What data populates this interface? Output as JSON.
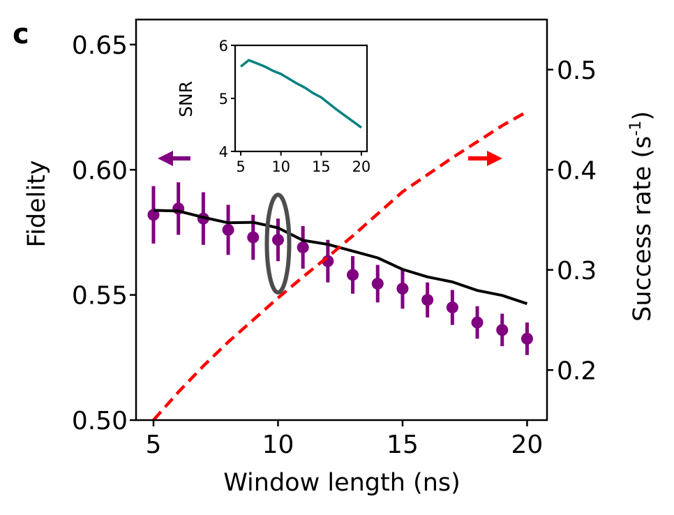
{
  "panel_label": "c",
  "chart_data": [
    {
      "type": "line",
      "xlabel": "Window length (ns)",
      "ylabel_left": "Fidelity",
      "ylabel_right_main": "Success rate (s",
      "ylabel_right_sup": "-1",
      "ylabel_right_close": ")",
      "xlim": [
        4.3,
        20.8
      ],
      "ylim_left": [
        0.5,
        0.66
      ],
      "ylim_right": [
        0.15,
        0.55
      ],
      "xticks": [
        5,
        10,
        15,
        20
      ],
      "xtick_labels": [
        "5",
        "10",
        "15",
        "20"
      ],
      "yticks_left": [
        0.5,
        0.55,
        0.6,
        0.65
      ],
      "ytick_labels_left": [
        "0.50",
        "0.55",
        "0.60",
        "0.65"
      ],
      "yticks_right": [
        0.2,
        0.3,
        0.4,
        0.5
      ],
      "ytick_labels_right": [
        "0.2",
        "0.3",
        "0.4",
        "0.5"
      ],
      "series": [
        {
          "kind": "errorbar",
          "axis": "left",
          "color": "#800080",
          "x": [
            5,
            6,
            7,
            8,
            9,
            10,
            11,
            12,
            13,
            14,
            15,
            16,
            17,
            18,
            19,
            20
          ],
          "y": [
            0.582,
            0.5845,
            0.5805,
            0.576,
            0.573,
            0.572,
            0.569,
            0.5635,
            0.558,
            0.5545,
            0.5525,
            0.548,
            0.545,
            0.539,
            0.536,
            0.5325
          ],
          "err": [
            0.0115,
            0.0105,
            0.0105,
            0.01,
            0.009,
            0.0085,
            0.0085,
            0.0085,
            0.0075,
            0.0075,
            0.008,
            0.007,
            0.007,
            0.0065,
            0.0065,
            0.0065
          ]
        },
        {
          "kind": "line",
          "axis": "left",
          "color": "#000000",
          "x": [
            5,
            6,
            7,
            8,
            9,
            10,
            11,
            12,
            13,
            14,
            15,
            16,
            17,
            18,
            19,
            20
          ],
          "y": [
            0.5838,
            0.5835,
            0.581,
            0.5788,
            0.579,
            0.5768,
            0.5718,
            0.5702,
            0.5675,
            0.5648,
            0.5602,
            0.5572,
            0.5552,
            0.5518,
            0.5498,
            0.5465
          ]
        },
        {
          "kind": "dashed-line",
          "axis": "right",
          "color": "#ff0000",
          "x": [
            5,
            6,
            7,
            8,
            9,
            10,
            11,
            12,
            13,
            14,
            15,
            16,
            17,
            18,
            19,
            20
          ],
          "y": [
            0.15,
            0.178,
            0.204,
            0.228,
            0.25,
            0.272,
            0.293,
            0.313,
            0.334,
            0.356,
            0.378,
            0.395,
            0.412,
            0.428,
            0.444,
            0.458
          ]
        }
      ],
      "annotations": {
        "left_arrow_color": "#800080",
        "right_arrow_color": "#ff0000",
        "ellipse": {
          "x": 10,
          "y": 0.5705,
          "color": "#4d4d4d"
        }
      }
    },
    {
      "type": "line",
      "role": "inset",
      "xlabel": "",
      "ylabel": "SNR",
      "xlim": [
        4.3,
        20.7
      ],
      "ylim": [
        4,
        6
      ],
      "xticks": [
        5,
        10,
        15,
        20
      ],
      "xtick_labels": [
        "5",
        "10",
        "15",
        "20"
      ],
      "yticks": [
        4,
        5,
        6
      ],
      "ytick_labels": [
        "4",
        "5",
        "6"
      ],
      "series": [
        {
          "color": "#008080",
          "x": [
            5,
            6,
            7,
            8,
            9,
            10,
            11,
            12,
            13,
            14,
            15,
            16,
            17,
            18,
            19,
            20
          ],
          "y": [
            5.6,
            5.72,
            5.66,
            5.6,
            5.52,
            5.46,
            5.37,
            5.28,
            5.2,
            5.1,
            5.02,
            4.9,
            4.78,
            4.67,
            4.56,
            4.45
          ]
        }
      ]
    }
  ]
}
